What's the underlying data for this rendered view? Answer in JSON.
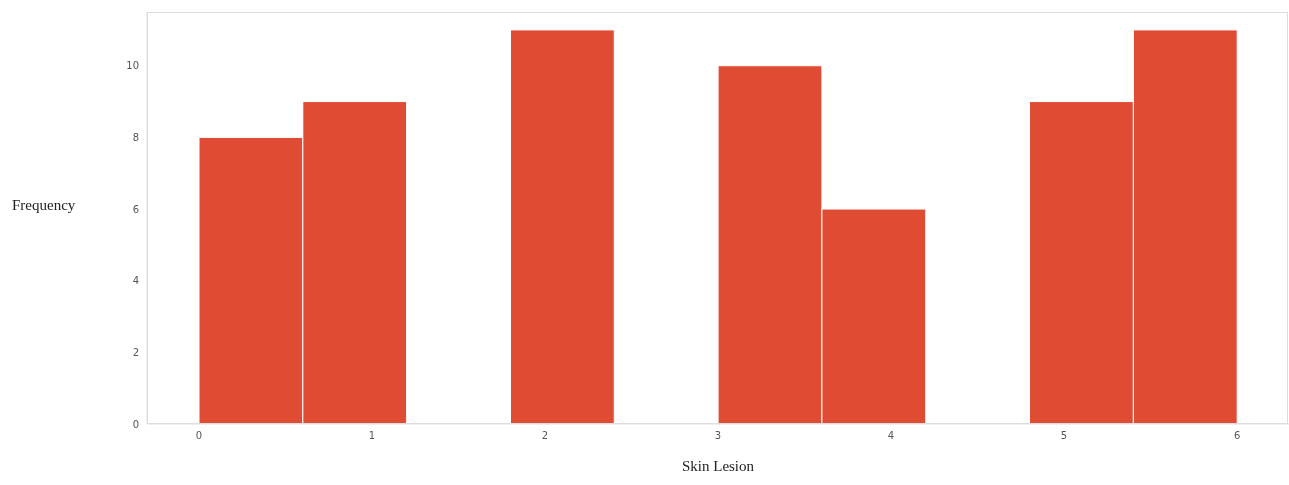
{
  "chart_data": {
    "type": "histogram",
    "xlabel": "Skin Lesion",
    "ylabel": "Frequency",
    "bins": [
      0,
      0.6,
      1.2,
      1.8,
      2.4,
      3.0,
      3.6,
      4.2,
      4.8,
      5.4,
      6.0
    ],
    "values": [
      8,
      9,
      0,
      11,
      0,
      10,
      6,
      0,
      9,
      11
    ],
    "color": "#e04b33",
    "xlim": [
      -0.3,
      6.3
    ],
    "xticks": [
      0,
      1,
      2,
      3,
      4,
      5,
      6
    ],
    "ylim": [
      0,
      11.5
    ],
    "yticks": [
      0,
      2,
      4,
      6,
      8,
      10
    ],
    "grid": false
  }
}
